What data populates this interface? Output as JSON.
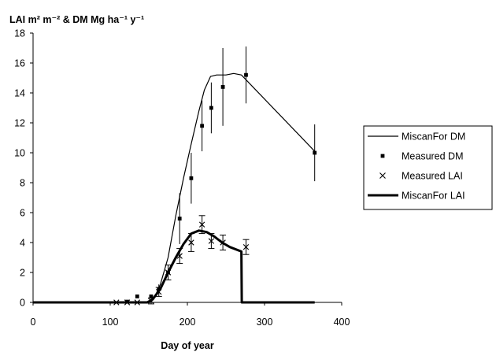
{
  "chart_data": {
    "type": "line",
    "ylabel": "LAI m² m⁻² & DM Mg ha⁻¹ y⁻¹",
    "xlabel": "Day of year",
    "xlim": [
      0,
      400
    ],
    "ylim": [
      0,
      18
    ],
    "xticks": [
      0,
      100,
      200,
      300,
      400
    ],
    "yticks": [
      0,
      2,
      4,
      6,
      8,
      10,
      12,
      14,
      16,
      18
    ],
    "grid": false,
    "legend_position": "right",
    "series": [
      {
        "name": "MiscanFor DM",
        "kind": "line",
        "style": "thin",
        "x": [
          0,
          150,
          157,
          165,
          175,
          185,
          195,
          205,
          215,
          222,
          230,
          238,
          250,
          260,
          270,
          365
        ],
        "y": [
          0,
          0,
          0.3,
          1.2,
          3.0,
          5.8,
          8.3,
          10.6,
          12.8,
          14.2,
          15.1,
          15.2,
          15.2,
          15.3,
          15.2,
          10.1
        ]
      },
      {
        "name": "Measured  DM",
        "kind": "points",
        "marker": "square",
        "x": [
          122,
          135,
          153,
          163,
          175,
          190,
          205,
          219,
          231,
          246,
          276,
          365
        ],
        "y": [
          0.05,
          0.4,
          0.4,
          0.9,
          2.0,
          5.6,
          8.3,
          11.8,
          13.0,
          14.4,
          15.2,
          10.0
        ],
        "err": [
          0,
          0,
          0,
          0.3,
          0.5,
          1.7,
          1.7,
          1.7,
          1.7,
          2.6,
          1.9,
          1.9
        ]
      },
      {
        "name": "Measured LAI",
        "kind": "points",
        "marker": "x",
        "x": [
          108,
          122,
          135,
          153,
          163,
          175,
          190,
          205,
          219,
          231,
          246,
          276
        ],
        "y": [
          0.0,
          0.0,
          0.0,
          0.1,
          0.7,
          2.0,
          3.1,
          4.0,
          5.2,
          4.1,
          4.0,
          3.7
        ],
        "err": [
          0,
          0,
          0,
          0.2,
          0.3,
          0.5,
          0.5,
          0.6,
          0.6,
          0.5,
          0.5,
          0.5
        ]
      },
      {
        "name": "MiscanFor LAI",
        "kind": "line",
        "style": "thick",
        "x": [
          0,
          148,
          155,
          165,
          175,
          185,
          195,
          205,
          215,
          225,
          235,
          245,
          255,
          270,
          270.5,
          365
        ],
        "y": [
          0,
          0,
          0.2,
          0.9,
          2.0,
          3.0,
          3.9,
          4.6,
          4.8,
          4.7,
          4.4,
          4.0,
          3.7,
          3.4,
          0,
          0
        ]
      }
    ]
  }
}
